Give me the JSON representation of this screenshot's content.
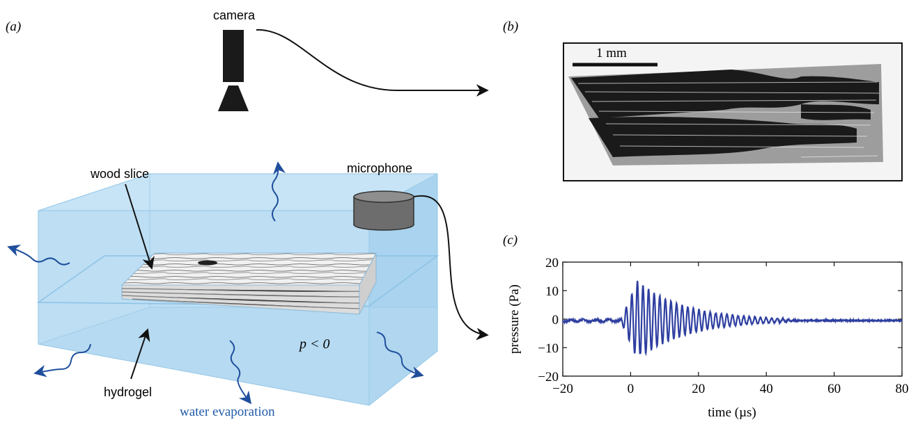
{
  "panels": {
    "a": "(a)",
    "b": "(b)",
    "c": "(c)"
  },
  "labels": {
    "camera": "camera",
    "microphone": "microphone",
    "wood_slice": "wood slice",
    "hydrogel": "hydrogel",
    "pressure_condition": "p < 0",
    "water_evaporation": "water evaporation",
    "scale_bar": "1 mm"
  },
  "colors": {
    "hydrogel_fill": "#b9dcf2",
    "evaporation_arrow": "#1f4f9c",
    "signal": "#2e3fa0"
  },
  "chart_data": {
    "type": "line",
    "xlabel": "time (µs)",
    "ylabel": "pressure (Pa)",
    "xlim": [
      -20,
      80
    ],
    "ylim": [
      -20,
      20
    ],
    "xticks": [
      -20,
      0,
      20,
      40,
      60,
      80
    ],
    "yticks": [
      -20,
      -10,
      0,
      10,
      20
    ],
    "xtick_labels": [
      "−20",
      "0",
      "20",
      "40",
      "60",
      "80"
    ],
    "ytick_labels": [
      "−20",
      "−10",
      "0",
      "10",
      "20"
    ],
    "grid": false,
    "series": [
      {
        "description_of_shape": "acoustic emission burst",
        "baseline": -0.5,
        "onset_us": -3,
        "peak_us": 2,
        "peak_amplitude_pa": 13.8,
        "min_amplitude_pa": -12,
        "period_us": 1.65,
        "decay_end_us": 45,
        "noise_amplitude_pa": 0.5
      }
    ]
  }
}
